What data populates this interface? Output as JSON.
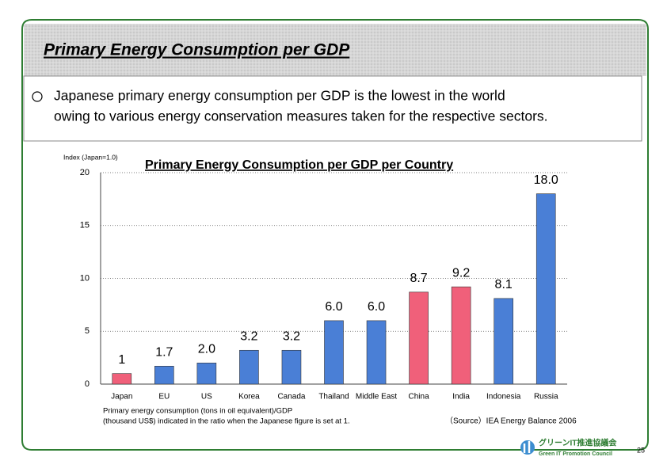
{
  "header": {
    "title": "Primary Energy Consumption per GDP"
  },
  "bullet": {
    "lines": [
      "Japanese primary energy consumption per GDP is the lowest in the world",
      "owing to various energy conservation measures taken for the respective sectors."
    ]
  },
  "chart_data": {
    "type": "bar",
    "title": "Primary Energy Consumption per GDP per Country",
    "y_label": "Index (Japan=1.0)",
    "categories": [
      "Japan",
      "EU",
      "US",
      "Korea",
      "Canada",
      "Thailand",
      "Middle East",
      "China",
      "India",
      "Indonesia",
      "Russia"
    ],
    "values": [
      1,
      1.7,
      2,
      3.2,
      3.2,
      6,
      6,
      8.7,
      9.2,
      8.1,
      18
    ],
    "value_labels": [
      "1",
      "1.7",
      "2.0",
      "3.2",
      "3.2",
      "6.0",
      "6.0",
      "8.7",
      "9.2",
      "8.1",
      "18.0"
    ],
    "colors": [
      "#f0607a",
      "#4a7fd6",
      "#4a7fd6",
      "#4a7fd6",
      "#4a7fd6",
      "#4a7fd6",
      "#4a7fd6",
      "#f0607a",
      "#f0607a",
      "#4a7fd6",
      "#4a7fd6"
    ],
    "ylim": [
      0,
      20
    ],
    "yticks": [
      0,
      5,
      10,
      15,
      20
    ],
    "grid": true
  },
  "footnote": {
    "lines": [
      "Primary energy consumption (tons in oil equivalent)/GDP",
      "(thousand US$) indicated in the ratio when the Japanese figure is set at 1."
    ]
  },
  "source": "（Source）IEA Energy Balance 2006",
  "logo": {
    "japanese": "グリーンIT推進協議会",
    "english": "Green IT Promotion Council"
  },
  "page_number": "25"
}
